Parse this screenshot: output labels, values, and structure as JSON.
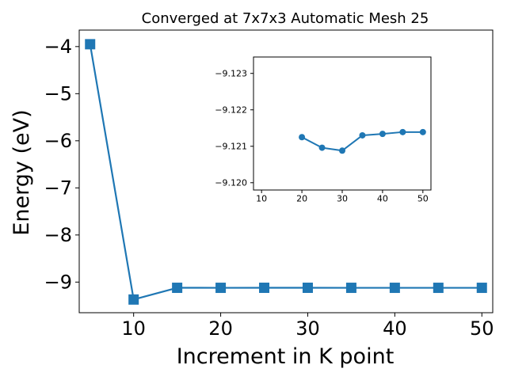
{
  "chart_data": [
    {
      "type": "line",
      "title": "Converged at 7x7x3 Automatic Mesh 25",
      "xlabel": "Increment in K point",
      "ylabel": "Energy (eV)",
      "x": [
        5,
        10,
        15,
        20,
        25,
        30,
        35,
        40,
        45,
        50
      ],
      "series": [
        {
          "values": [
            -3.95,
            -9.37,
            -9.121,
            -9.1213,
            -9.1209,
            -9.1208,
            -9.1213,
            -9.1213,
            -9.1214,
            -9.1214
          ]
        }
      ],
      "marker": "square",
      "color": "#1f77b4",
      "xlim": [
        3.75,
        51.25
      ],
      "ylim": [
        -9.65,
        -3.65
      ],
      "xticks": [
        10,
        20,
        30,
        40,
        50
      ],
      "xtick_labels": [
        "10",
        "20",
        "30",
        "40",
        "50"
      ],
      "yticks": [
        -9,
        -8,
        -7,
        -6,
        -5,
        -4
      ],
      "ytick_labels": [
        "−9",
        "−8",
        "−7",
        "−6",
        "−5",
        "−4"
      ],
      "grid": false
    },
    {
      "type": "line",
      "title": "",
      "xlabel": "",
      "ylabel": "",
      "x": [
        20,
        25,
        30,
        35,
        40,
        45,
        50
      ],
      "series": [
        {
          "values": [
            -9.12125,
            -9.12096,
            -9.12088,
            -9.1213,
            -9.12134,
            -9.12139,
            -9.12139
          ]
        }
      ],
      "marker": "circle",
      "color": "#1f77b4",
      "xlim": [
        8,
        52
      ],
      "ylim": [
        -9.1198,
        -9.12345
      ],
      "xticks": [
        10,
        20,
        30,
        40,
        50
      ],
      "xtick_labels": [
        "10",
        "20",
        "30",
        "40",
        "50"
      ],
      "yticks": [
        -9.12,
        -9.121,
        -9.122,
        -9.123
      ],
      "ytick_labels": [
        "−9.120",
        "−9.121",
        "−9.122",
        "−9.123"
      ],
      "grid": false
    }
  ]
}
